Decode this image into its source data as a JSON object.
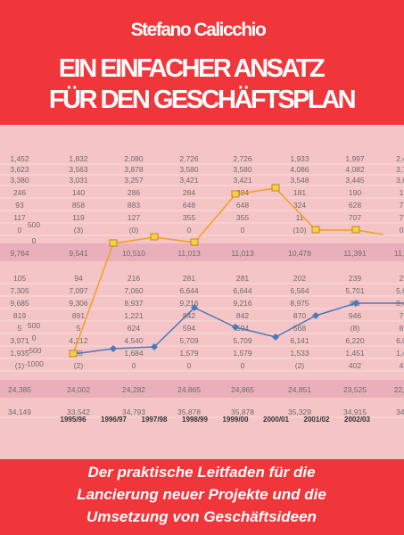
{
  "author": "Stefano Calicchio",
  "title": [
    "EIN EINFACHER ANSATZ",
    "FÜR DEN GESCHÄFTSPLAN"
  ],
  "background_table": {
    "rows": [
      [
        "1,452",
        "1,832",
        "2,080",
        "2,726",
        "2,726",
        "1,933",
        "1,997",
        "2,4"
      ],
      [
        "3,623",
        "3,563",
        "3,878",
        "3,580",
        "3,580",
        "4,086",
        "4,082",
        "3,7"
      ],
      [
        "3,380",
        "3,031",
        "3,257",
        "3,421",
        "3,421",
        "3,548",
        "3,445",
        "3,6"
      ],
      [
        "246",
        "140",
        "286",
        "284",
        "284",
        "181",
        "190",
        "1"
      ],
      [
        "93",
        "858",
        "883",
        "648",
        "648",
        "324",
        "628",
        "7"
      ],
      [
        "117",
        "119",
        "127",
        "355",
        "355",
        "11",
        "707",
        "7"
      ],
      [
        "0",
        "(3)",
        "(0)",
        "0",
        "0",
        "(10)",
        "3",
        "0"
      ],
      [
        "9,764",
        "9,541",
        "10,510",
        "11,013",
        "11,013",
        "10,478",
        "11,391",
        "11,5"
      ],
      [
        "105",
        "94",
        "216",
        "281",
        "281",
        "202",
        "239",
        "2"
      ],
      [
        "7,305",
        "7,097",
        "7,060",
        "6,644",
        "6,644",
        "6,564",
        "5,701",
        "5,6"
      ],
      [
        "9,685",
        "9,306",
        "8,937",
        "9,216",
        "9,216",
        "8,975",
        "8,5",
        "8,4"
      ],
      [
        "819",
        "891",
        "1,221",
        "842",
        "842",
        "870",
        "946",
        "7"
      ],
      [
        "5",
        "5",
        "624",
        "594",
        "594",
        "568",
        "(8)",
        "8"
      ],
      [
        "3,971",
        "4,212",
        "4,540",
        "5,709",
        "5,709",
        "6,141",
        "6,220",
        "6,0"
      ],
      [
        "1,935",
        "28",
        "1,684",
        "1,579",
        "1,579",
        "1,533",
        "1,451",
        "1,4"
      ],
      [
        "(1)",
        "(2)",
        "0",
        "0",
        "0",
        "(2)",
        "402",
        "4"
      ],
      [
        "24,385",
        "24,002",
        "24,282",
        "24,865",
        "24,865",
        "24,851",
        "23,525",
        "22,8"
      ],
      [
        "34,149",
        "33,542",
        "34,793",
        "35,878",
        "35,878",
        "35,329",
        "34,915",
        "34,"
      ]
    ],
    "years": [
      "1995/96",
      "1996/97",
      "1997/98",
      "1998/99",
      "1999/00",
      "2000/01",
      "2001/02",
      "2002/03"
    ],
    "axis_labels": [
      "500",
      "0",
      "500",
      "0",
      "-500",
      "-1000"
    ]
  },
  "subtitle": [
    "Der praktische Leitfaden für die",
    "Lancierung neuer Projekte und die",
    "Umsetzung von Geschäftsideen"
  ]
}
